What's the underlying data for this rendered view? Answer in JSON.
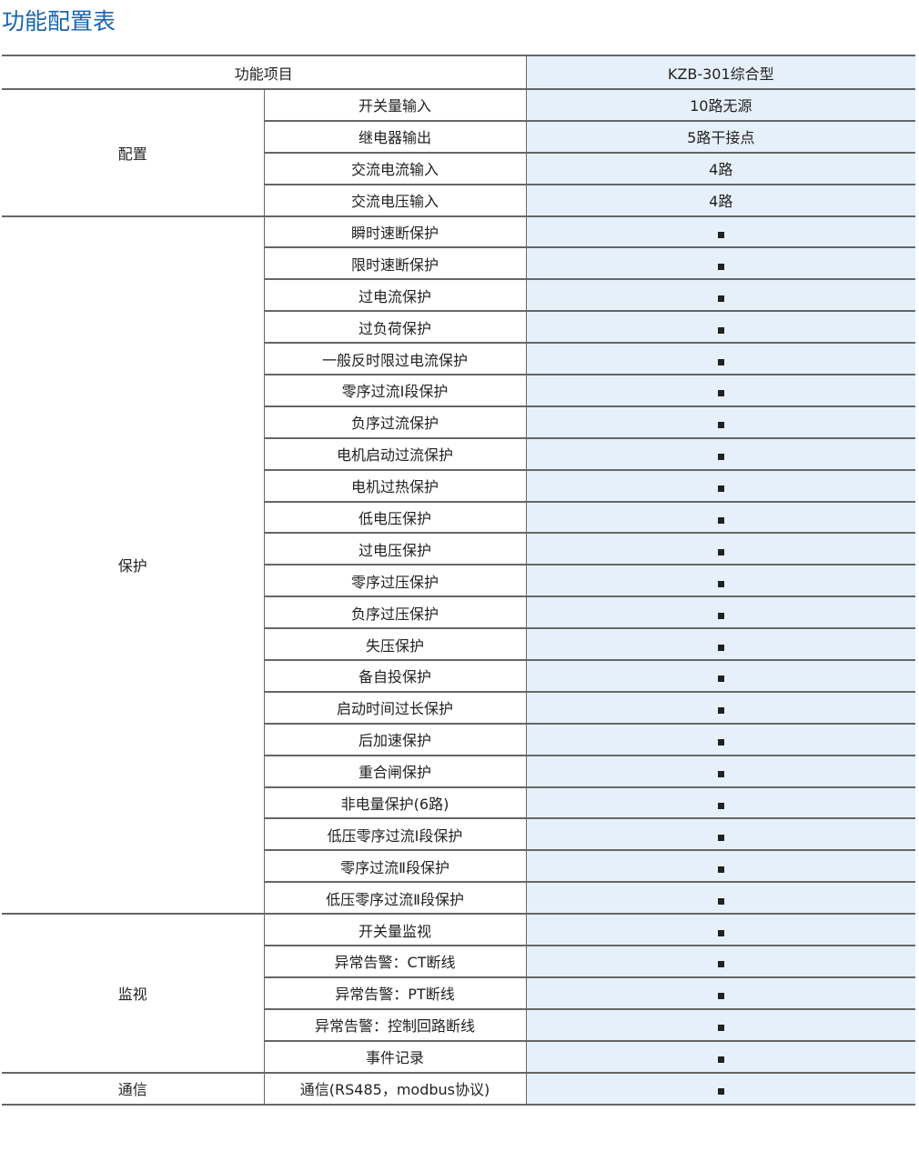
{
  "title": "功能配置表",
  "header": {
    "item": "功能项目",
    "model": "KZB-301综合型"
  },
  "mark_icon": "filled-square",
  "colors": {
    "title": "#1a64ad",
    "value_column_bg": "#e6f0fa"
  },
  "groups": [
    {
      "name": "配置",
      "rows": [
        {
          "item": "开关量输入",
          "value": "10路无源"
        },
        {
          "item": "继电器输出",
          "value": "5路干接点"
        },
        {
          "item": "交流电流输入",
          "value": "4路"
        },
        {
          "item": "交流电压输入",
          "value": "4路"
        }
      ]
    },
    {
      "name": "保护",
      "rows": [
        {
          "item": "瞬时速断保护",
          "value": "■"
        },
        {
          "item": "限时速断保护",
          "value": "■"
        },
        {
          "item": "过电流保护",
          "value": "■"
        },
        {
          "item": "过负荷保护",
          "value": "■"
        },
        {
          "item": "一般反时限过电流保护",
          "value": "■"
        },
        {
          "item": "零序过流Ⅰ段保护",
          "value": "■"
        },
        {
          "item": "负序过流保护",
          "value": "■"
        },
        {
          "item": "电机启动过流保护",
          "value": "■"
        },
        {
          "item": "电机过热保护",
          "value": "■"
        },
        {
          "item": "低电压保护",
          "value": "■"
        },
        {
          "item": "过电压保护",
          "value": "■"
        },
        {
          "item": "零序过压保护",
          "value": "■"
        },
        {
          "item": "负序过压保护",
          "value": "■"
        },
        {
          "item": "失压保护",
          "value": "■"
        },
        {
          "item": "备自投保护",
          "value": "■"
        },
        {
          "item": "启动时间过长保护",
          "value": "■"
        },
        {
          "item": "后加速保护",
          "value": "■"
        },
        {
          "item": "重合闸保护",
          "value": "■"
        },
        {
          "item": "非电量保护(6路)",
          "value": "■"
        },
        {
          "item": "低压零序过流Ⅰ段保护",
          "value": "■"
        },
        {
          "item": "零序过流Ⅱ段保护",
          "value": "■"
        },
        {
          "item": "低压零序过流Ⅱ段保护",
          "value": "■"
        }
      ]
    },
    {
      "name": "监视",
      "rows": [
        {
          "item": "开关量监视",
          "value": "■"
        },
        {
          "item": "异常告警：CT断线",
          "value": "■"
        },
        {
          "item": "异常告警：PT断线",
          "value": "■"
        },
        {
          "item": "异常告警：控制回路断线",
          "value": "■"
        },
        {
          "item": "事件记录",
          "value": "■"
        }
      ]
    },
    {
      "name": "通信",
      "rows": [
        {
          "item": "通信(RS485，modbus协议)",
          "value": "■"
        }
      ]
    }
  ]
}
